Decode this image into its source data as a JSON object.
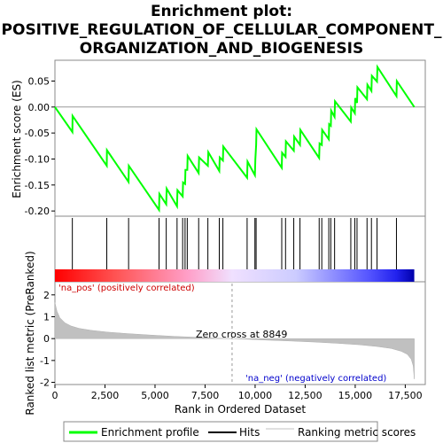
{
  "chart_data": {
    "type": "line",
    "title_lines": [
      "Enrichment plot:",
      "POSITIVE_REGULATION_OF_CELLULAR_COMPONENT_",
      "ORGANIZATION_AND_BIOGENESIS"
    ],
    "es_panel": {
      "ylabel": "Enrichment score (ES)",
      "ylim": [
        -0.21,
        0.09
      ],
      "yticks": [
        {
          "v": 0.05,
          "label": "0.05"
        },
        {
          "v": 0.0,
          "label": "0.00"
        },
        {
          "v": -0.05,
          "label": "-0.05"
        },
        {
          "v": -0.1,
          "label": "-0.10"
        },
        {
          "v": -0.15,
          "label": "-0.15"
        },
        {
          "v": -0.2,
          "label": "-0.20"
        }
      ],
      "line_color": "#00ff00",
      "points": [
        [
          0,
          0.0
        ],
        [
          870,
          -0.048
        ],
        [
          880,
          -0.017
        ],
        [
          2590,
          -0.113
        ],
        [
          2600,
          -0.083
        ],
        [
          3680,
          -0.144
        ],
        [
          3690,
          -0.113
        ],
        [
          5200,
          -0.198
        ],
        [
          5220,
          -0.167
        ],
        [
          5560,
          -0.187
        ],
        [
          5580,
          -0.157
        ],
        [
          6100,
          -0.191
        ],
        [
          6120,
          -0.16
        ],
        [
          6380,
          -0.172
        ],
        [
          6400,
          -0.145
        ],
        [
          6500,
          -0.148
        ],
        [
          6520,
          -0.121
        ],
        [
          6610,
          -0.121
        ],
        [
          6630,
          -0.094
        ],
        [
          7180,
          -0.127
        ],
        [
          7200,
          -0.097
        ],
        [
          7640,
          -0.113
        ],
        [
          7660,
          -0.087
        ],
        [
          8210,
          -0.123
        ],
        [
          8230,
          -0.097
        ],
        [
          8390,
          -0.103
        ],
        [
          8410,
          -0.076
        ],
        [
          9600,
          -0.136
        ],
        [
          9620,
          -0.105
        ],
        [
          9990,
          -0.131
        ],
        [
          10010,
          -0.101
        ],
        [
          10050,
          -0.073
        ],
        [
          10070,
          -0.043
        ],
        [
          11330,
          -0.117
        ],
        [
          11350,
          -0.088
        ],
        [
          11520,
          -0.096
        ],
        [
          11540,
          -0.066
        ],
        [
          11930,
          -0.084
        ],
        [
          11950,
          -0.057
        ],
        [
          12240,
          -0.073
        ],
        [
          12260,
          -0.044
        ],
        [
          13200,
          -0.098
        ],
        [
          13220,
          -0.07
        ],
        [
          13330,
          -0.073
        ],
        [
          13350,
          -0.044
        ],
        [
          13680,
          -0.062
        ],
        [
          13700,
          -0.033
        ],
        [
          13780,
          -0.036
        ],
        [
          13800,
          -0.007
        ],
        [
          13970,
          -0.019
        ],
        [
          13990,
          0.011
        ],
        [
          14780,
          -0.028
        ],
        [
          14800,
          -0.001
        ],
        [
          14980,
          -0.012
        ],
        [
          15000,
          0.017
        ],
        [
          15090,
          0.008
        ],
        [
          15110,
          0.038
        ],
        [
          15590,
          0.015
        ],
        [
          15610,
          0.043
        ],
        [
          15810,
          0.031
        ],
        [
          15830,
          0.06
        ],
        [
          16090,
          0.049
        ],
        [
          16110,
          0.077
        ],
        [
          17060,
          0.021
        ],
        [
          17080,
          0.05
        ],
        [
          17950,
          0.0
        ]
      ]
    },
    "hits": [
      870,
      2590,
      3680,
      5200,
      5560,
      6100,
      6380,
      6500,
      6610,
      7180,
      7640,
      8210,
      8390,
      9600,
      9990,
      10050,
      11330,
      11520,
      11930,
      12240,
      13200,
      13330,
      13680,
      13780,
      13970,
      14780,
      14980,
      15090,
      15590,
      15810,
      16090,
      17060
    ],
    "ranked_panel": {
      "ylabel": "Ranked list metric (PreRanked)",
      "ylim": [
        -2.1,
        2.6
      ],
      "yticks": [
        {
          "v": 2,
          "label": "2"
        },
        {
          "v": 1,
          "label": "1"
        },
        {
          "v": 0,
          "label": "0"
        },
        {
          "v": -1,
          "label": "-1"
        },
        {
          "v": -2,
          "label": "-2"
        }
      ],
      "metric_profile": [
        [
          0,
          1.65
        ],
        [
          100,
          1.25
        ],
        [
          250,
          0.95
        ],
        [
          500,
          0.72
        ],
        [
          800,
          0.58
        ],
        [
          1200,
          0.47
        ],
        [
          1800,
          0.38
        ],
        [
          2600,
          0.3
        ],
        [
          3600,
          0.23
        ],
        [
          4800,
          0.16
        ],
        [
          6000,
          0.1
        ],
        [
          7200,
          0.055
        ],
        [
          8000,
          0.025
        ],
        [
          8849,
          0.0
        ],
        [
          9600,
          -0.03
        ],
        [
          10600,
          -0.07
        ],
        [
          11800,
          -0.11
        ],
        [
          13000,
          -0.16
        ],
        [
          14200,
          -0.22
        ],
        [
          15200,
          -0.28
        ],
        [
          16100,
          -0.36
        ],
        [
          16800,
          -0.45
        ],
        [
          17300,
          -0.58
        ],
        [
          17600,
          -0.72
        ],
        [
          17800,
          -0.95
        ],
        [
          17900,
          -1.25
        ],
        [
          17950,
          -1.85
        ]
      ],
      "zero_cross_label": "Zero cross at 8849",
      "zero_cross_x": 8849
    },
    "pos_label": "'na_pos' (positively correlated)",
    "neg_label": "'na_neg' (negatively correlated)",
    "pos_label_color": "#cc0000",
    "neg_label_color": "#0000cc",
    "xlabel": "Rank in Ordered Dataset",
    "xlim": [
      0,
      18500
    ],
    "xticks": [
      {
        "v": 0,
        "label": "0"
      },
      {
        "v": 2500,
        "label": "2,500"
      },
      {
        "v": 5000,
        "label": "5,000"
      },
      {
        "v": 7500,
        "label": "7,500"
      },
      {
        "v": 10000,
        "label": "10,000"
      },
      {
        "v": 12500,
        "label": "12,500"
      },
      {
        "v": 15000,
        "label": "15,000"
      },
      {
        "v": 17500,
        "label": "17,500"
      }
    ],
    "n_genes": 17950,
    "legend": [
      {
        "label": "Enrichment profile",
        "color": "#00ff00",
        "kind": "line"
      },
      {
        "label": "Hits",
        "color": "#000000",
        "kind": "line"
      },
      {
        "label": "Ranking metric scores",
        "color": "#c0c0c0",
        "kind": "line"
      }
    ]
  }
}
